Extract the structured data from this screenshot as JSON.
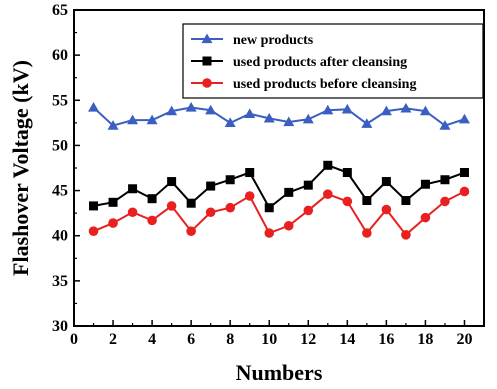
{
  "chart_data": {
    "type": "line",
    "xlabel": "Numbers",
    "ylabel": "Flashover Voltage (kV)",
    "xlim": [
      0,
      21
    ],
    "ylim": [
      30,
      65
    ],
    "xticks": [
      0,
      2,
      4,
      6,
      8,
      10,
      12,
      14,
      16,
      18,
      20
    ],
    "yticks": [
      30,
      35,
      40,
      45,
      50,
      55,
      60,
      65
    ],
    "grid": false,
    "legend_position": "top-right",
    "x": [
      1,
      2,
      3,
      4,
      5,
      6,
      7,
      8,
      9,
      10,
      11,
      12,
      13,
      14,
      15,
      16,
      17,
      18,
      19,
      20
    ],
    "series": [
      {
        "name": "new products",
        "color": "#3a5fc0",
        "marker": "triangle",
        "values": [
          54.2,
          52.2,
          52.8,
          52.8,
          53.8,
          54.2,
          53.9,
          52.5,
          53.5,
          53.0,
          52.6,
          52.9,
          53.9,
          54.0,
          52.4,
          53.8,
          54.1,
          53.8,
          52.2,
          52.9
        ]
      },
      {
        "name": "used products after cleansing",
        "color": "#000000",
        "marker": "square",
        "values": [
          43.3,
          43.7,
          45.2,
          44.1,
          46.0,
          43.6,
          45.5,
          46.2,
          47.0,
          43.1,
          44.8,
          45.6,
          47.8,
          47.0,
          43.9,
          46.0,
          43.9,
          45.7,
          46.2,
          47.0
        ]
      },
      {
        "name": "used products before cleansing",
        "color": "#e82020",
        "marker": "circle",
        "values": [
          40.5,
          41.4,
          42.6,
          41.7,
          43.3,
          40.5,
          42.6,
          43.1,
          44.4,
          40.3,
          41.1,
          42.8,
          44.6,
          43.8,
          40.3,
          42.9,
          40.1,
          42.0,
          43.8,
          44.9
        ]
      }
    ]
  }
}
